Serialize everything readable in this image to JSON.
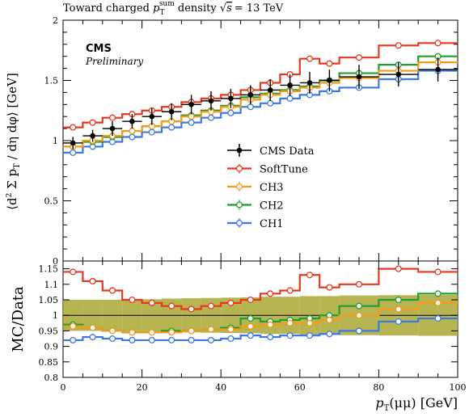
{
  "chart_data": [
    {
      "type": "line",
      "panel": "main",
      "title": "Toward charged p_T^sum density √s = 13 TeV",
      "title_parts": {
        "prefix": "Toward charged ",
        "var": "p",
        "sub": "T",
        "sup": "sum",
        "middle": " density ",
        "energy": "= 13 TeV"
      },
      "experiment_label": "CMS",
      "status_label": "Preliminary",
      "ylabel": "⟨d² Σ p_T / dη dφ⟩ [GeV]",
      "ylabel_parts": {
        "lhs": "⟨d",
        "two": "2",
        "sum": " Σ p",
        "sub": "T",
        "rest": " / dη dφ⟩ [GeV]"
      },
      "xlim": [
        0,
        100
      ],
      "ylim": [
        0,
        2
      ],
      "yticks": [
        "0",
        "0.5",
        "1",
        "1.5",
        "2"
      ],
      "x": [
        2.5,
        7.5,
        12.5,
        17.5,
        22.5,
        27.5,
        32.5,
        37.5,
        42.5,
        47.5,
        52.5,
        57.5,
        62.5,
        67.5,
        75,
        85,
        95
      ],
      "bin_edges": [
        0,
        5,
        10,
        15,
        20,
        25,
        30,
        35,
        40,
        45,
        50,
        55,
        60,
        65,
        70,
        80,
        90,
        100
      ],
      "series": [
        {
          "name": "CMS Data",
          "style": "data",
          "color": "#000000",
          "values": [
            0.98,
            1.04,
            1.1,
            1.16,
            1.2,
            1.24,
            1.3,
            1.33,
            1.35,
            1.38,
            1.42,
            1.46,
            1.48,
            1.5,
            1.53,
            1.55,
            1.59
          ],
          "errors": [
            0.05,
            0.05,
            0.06,
            0.06,
            0.07,
            0.07,
            0.08,
            0.08,
            0.08,
            0.08,
            0.09,
            0.09,
            0.09,
            0.09,
            0.1,
            0.1,
            0.1
          ]
        },
        {
          "name": "SoftTune",
          "color": "#e8371f",
          "values": [
            1.11,
            1.15,
            1.19,
            1.22,
            1.25,
            1.28,
            1.32,
            1.35,
            1.38,
            1.42,
            1.48,
            1.55,
            1.68,
            1.64,
            1.69,
            1.79,
            1.81
          ]
        },
        {
          "name": "CH3",
          "color": "#f59a1b",
          "values": [
            0.95,
            1.0,
            1.04,
            1.08,
            1.12,
            1.16,
            1.2,
            1.24,
            1.28,
            1.34,
            1.38,
            1.41,
            1.44,
            1.48,
            1.52,
            1.58,
            1.65
          ]
        },
        {
          "name": "CH2",
          "color": "#1e9e32",
          "values": [
            0.95,
            0.99,
            1.03,
            1.08,
            1.12,
            1.16,
            1.21,
            1.25,
            1.29,
            1.36,
            1.39,
            1.42,
            1.45,
            1.5,
            1.56,
            1.63,
            1.7
          ]
        },
        {
          "name": "CH1",
          "color": "#3d78e6",
          "values": [
            0.9,
            0.95,
            0.99,
            1.03,
            1.07,
            1.11,
            1.15,
            1.19,
            1.23,
            1.28,
            1.31,
            1.35,
            1.38,
            1.41,
            1.44,
            1.51,
            1.58
          ]
        }
      ],
      "legend_position": "right-center"
    },
    {
      "type": "line",
      "panel": "ratio",
      "ylabel": "MC/Data",
      "xlabel": "p_T(μμ) [GeV]",
      "xlabel_parts": {
        "var": "p",
        "sub": "T",
        "rest": "(μμ) [GeV]"
      },
      "xlim": [
        0,
        100
      ],
      "ylim": [
        0.8,
        1.175
      ],
      "yticks": [
        "0.8",
        "0.85",
        "0.9",
        "0.95",
        "1",
        "1.05",
        "1.1",
        "1.15"
      ],
      "xticks": [
        "0",
        "20",
        "40",
        "60",
        "80",
        "100"
      ],
      "band_color": "#a9a832",
      "band_halfwidth": [
        0.05,
        0.05,
        0.05,
        0.052,
        0.052,
        0.054,
        0.055,
        0.056,
        0.057,
        0.058,
        0.06,
        0.06,
        0.062,
        0.062,
        0.064,
        0.065,
        0.066
      ],
      "series": [
        {
          "name": "SoftTune",
          "color": "#e8371f",
          "values": [
            1.14,
            1.11,
            1.08,
            1.05,
            1.04,
            1.03,
            1.02,
            1.03,
            1.04,
            1.05,
            1.07,
            1.08,
            1.13,
            1.09,
            1.1,
            1.15,
            1.14
          ]
        },
        {
          "name": "CH3",
          "color": "#f59a1b",
          "values": [
            0.965,
            0.96,
            0.95,
            0.945,
            0.945,
            0.945,
            0.95,
            0.955,
            0.955,
            0.965,
            0.97,
            0.975,
            0.975,
            0.985,
            1.0,
            1.02,
            1.04
          ]
        },
        {
          "name": "CH2",
          "color": "#1e9e32",
          "values": [
            0.97,
            0.96,
            0.95,
            0.945,
            0.945,
            0.95,
            0.95,
            0.955,
            0.96,
            0.99,
            0.98,
            0.985,
            0.99,
            1.0,
            1.03,
            1.05,
            1.07
          ]
        },
        {
          "name": "CH1",
          "color": "#3d78e6",
          "values": [
            0.92,
            0.93,
            0.925,
            0.92,
            0.92,
            0.92,
            0.92,
            0.92,
            0.925,
            0.935,
            0.93,
            0.935,
            0.935,
            0.94,
            0.95,
            0.98,
            0.99
          ]
        }
      ]
    }
  ]
}
